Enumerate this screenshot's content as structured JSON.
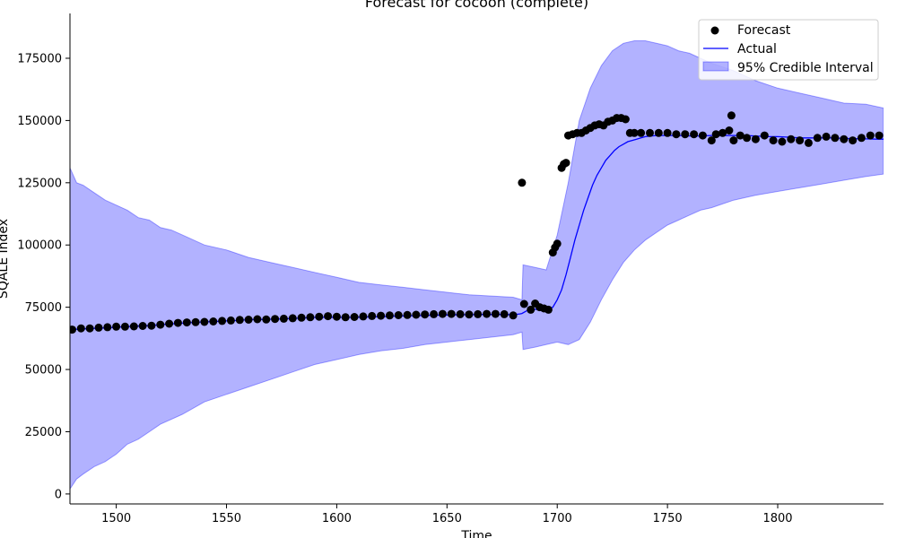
{
  "chart_data": {
    "type": "line",
    "title": "Forecast for cocoon (complete)",
    "xlabel": "Time",
    "ylabel": "SQALE Index",
    "xlim": [
      1479,
      1848
    ],
    "ylim": [
      -4000,
      193000
    ],
    "x_ticks": [
      1500,
      1550,
      1600,
      1650,
      1700,
      1750,
      1800
    ],
    "y_ticks": [
      0,
      25000,
      50000,
      75000,
      100000,
      125000,
      150000,
      175000
    ],
    "x_tick_labels": [
      "1500",
      "1550",
      "1600",
      "1650",
      "1700",
      "1750",
      "1800"
    ],
    "y_tick_labels": [
      "0",
      "25000",
      "50000",
      "75000",
      "100000",
      "125000",
      "150000",
      "175000"
    ],
    "grid": false,
    "legend_position": "top-right",
    "legend": [
      "Forecast",
      "Actual",
      "95% Credible Interval"
    ],
    "colors": {
      "forecast": "#000000",
      "actual": "#0000ff",
      "interval": "#0000ff"
    },
    "series": [
      {
        "name": "Forecast",
        "type": "scatter",
        "x": [
          1480,
          1484,
          1488,
          1492,
          1496,
          1500,
          1504,
          1508,
          1512,
          1516,
          1520,
          1524,
          1528,
          1532,
          1536,
          1540,
          1544,
          1548,
          1552,
          1556,
          1560,
          1564,
          1568,
          1572,
          1576,
          1580,
          1584,
          1588,
          1592,
          1596,
          1600,
          1604,
          1608,
          1612,
          1616,
          1620,
          1624,
          1628,
          1632,
          1636,
          1640,
          1644,
          1648,
          1652,
          1656,
          1660,
          1664,
          1668,
          1672,
          1676,
          1680,
          1684,
          1685,
          1688,
          1690,
          1692,
          1694,
          1696,
          1698,
          1699,
          1700,
          1702,
          1703,
          1704,
          1705,
          1707,
          1709,
          1711,
          1713,
          1715,
          1717,
          1719,
          1721,
          1723,
          1725,
          1727,
          1729,
          1731,
          1733,
          1735,
          1738,
          1742,
          1746,
          1750,
          1754,
          1758,
          1762,
          1766,
          1770,
          1772,
          1775,
          1778,
          1779,
          1780,
          1783,
          1786,
          1790,
          1794,
          1798,
          1802,
          1806,
          1810,
          1814,
          1818,
          1822,
          1826,
          1830,
          1834,
          1838,
          1842,
          1846
        ],
        "values": [
          66000,
          66500,
          66500,
          66800,
          67000,
          67200,
          67200,
          67300,
          67500,
          67600,
          68000,
          68400,
          68700,
          68900,
          69000,
          69100,
          69300,
          69500,
          69700,
          69900,
          70000,
          70200,
          70100,
          70300,
          70400,
          70600,
          70800,
          71000,
          71200,
          71400,
          71200,
          71000,
          71100,
          71300,
          71500,
          71600,
          71700,
          71800,
          71900,
          72000,
          72100,
          72200,
          72300,
          72300,
          72200,
          72100,
          72200,
          72300,
          72300,
          72200,
          71700,
          125000,
          76300,
          74000,
          76500,
          75000,
          74500,
          74000,
          97000,
          99000,
          100500,
          131000,
          132500,
          133000,
          144000,
          144500,
          145000,
          145000,
          146000,
          147000,
          148000,
          148500,
          148000,
          149500,
          150000,
          151000,
          151000,
          150500,
          145000,
          145000,
          145000,
          145000,
          145000,
          145000,
          144500,
          144500,
          144500,
          144000,
          142000,
          144500,
          145000,
          146000,
          152000,
          142000,
          144000,
          143000,
          142500,
          144000,
          142000,
          141500,
          142500,
          142000,
          141000,
          143000,
          143500,
          143000,
          142500,
          142000,
          143000,
          144000,
          144000
        ]
      },
      {
        "name": "Actual",
        "type": "line",
        "x": [
          1479,
          1485,
          1490,
          1495,
          1500,
          1505,
          1510,
          1515,
          1520,
          1525,
          1530,
          1535,
          1540,
          1545,
          1550,
          1555,
          1560,
          1565,
          1570,
          1575,
          1580,
          1585,
          1590,
          1595,
          1600,
          1605,
          1610,
          1615,
          1620,
          1625,
          1630,
          1635,
          1640,
          1645,
          1650,
          1655,
          1660,
          1665,
          1670,
          1675,
          1680,
          1683,
          1684,
          1686,
          1688,
          1690,
          1692,
          1694,
          1696,
          1698,
          1700,
          1702,
          1704,
          1706,
          1708,
          1710,
          1712,
          1714,
          1716,
          1718,
          1720,
          1722,
          1724,
          1726,
          1728,
          1730,
          1732,
          1734,
          1736,
          1738,
          1740,
          1745,
          1750,
          1755,
          1760,
          1765,
          1770,
          1775,
          1780,
          1785,
          1790,
          1795,
          1800,
          1805,
          1810,
          1815,
          1820,
          1825,
          1830,
          1835,
          1840,
          1845,
          1848
        ],
        "values": [
          66000,
          66300,
          66500,
          66700,
          67000,
          67200,
          67400,
          67600,
          68000,
          68300,
          68600,
          68900,
          69100,
          69300,
          69500,
          69700,
          70000,
          70100,
          70200,
          70300,
          70500,
          70700,
          70900,
          71000,
          71000,
          70900,
          71000,
          71100,
          71200,
          71400,
          71500,
          71600,
          71700,
          71800,
          71900,
          72000,
          72000,
          72100,
          72100,
          72100,
          72000,
          72300,
          72500,
          73500,
          74000,
          74200,
          74000,
          74000,
          74000,
          75000,
          78000,
          82000,
          88000,
          95000,
          102000,
          108000,
          114000,
          119000,
          124000,
          128000,
          131000,
          134000,
          136000,
          138000,
          139500,
          140500,
          141500,
          142000,
          142500,
          143000,
          143500,
          144000,
          144000,
          144000,
          143800,
          143800,
          144000,
          144000,
          144000,
          144000,
          143800,
          143500,
          143500,
          143300,
          143000,
          143000,
          143000,
          143000,
          142800,
          142700,
          142600,
          142500,
          142500
        ]
      },
      {
        "name": "95% Credible Interval",
        "type": "band",
        "x": [
          1479,
          1482,
          1485,
          1490,
          1495,
          1500,
          1505,
          1510,
          1515,
          1520,
          1525,
          1530,
          1540,
          1550,
          1560,
          1570,
          1580,
          1590,
          1600,
          1610,
          1620,
          1630,
          1640,
          1650,
          1660,
          1670,
          1680,
          1684,
          1684.5,
          1690,
          1695,
          1700,
          1705,
          1710,
          1715,
          1720,
          1725,
          1730,
          1735,
          1740,
          1745,
          1750,
          1755,
          1760,
          1765,
          1770,
          1775,
          1780,
          1785,
          1790,
          1800,
          1810,
          1820,
          1830,
          1840,
          1848
        ],
        "upper": [
          131000,
          125000,
          124000,
          121000,
          118000,
          116000,
          114000,
          111000,
          110000,
          107000,
          106000,
          104000,
          100000,
          98000,
          95000,
          93000,
          91000,
          89000,
          87000,
          85000,
          84000,
          83000,
          82000,
          81000,
          80000,
          79500,
          79000,
          78000,
          92000,
          91000,
          90000,
          104000,
          125000,
          150000,
          163000,
          172000,
          178000,
          181000,
          182000,
          182000,
          181000,
          180000,
          178000,
          177000,
          175000,
          173000,
          171500,
          170000,
          168000,
          166000,
          163000,
          161000,
          159000,
          157000,
          156500,
          155000
        ],
        "lower": [
          2000,
          6000,
          8000,
          11000,
          13000,
          16000,
          20000,
          22000,
          25000,
          28000,
          30000,
          32000,
          37000,
          40000,
          43000,
          46000,
          49000,
          52000,
          54000,
          56000,
          57500,
          58500,
          60000,
          61000,
          62000,
          63000,
          64000,
          65000,
          58000,
          59000,
          60000,
          61000,
          60000,
          62000,
          69000,
          78000,
          86000,
          93000,
          98000,
          102000,
          105000,
          108000,
          110000,
          112000,
          114000,
          115000,
          116500,
          118000,
          119000,
          120000,
          121500,
          123000,
          124500,
          126000,
          127500,
          128500
        ]
      }
    ]
  }
}
